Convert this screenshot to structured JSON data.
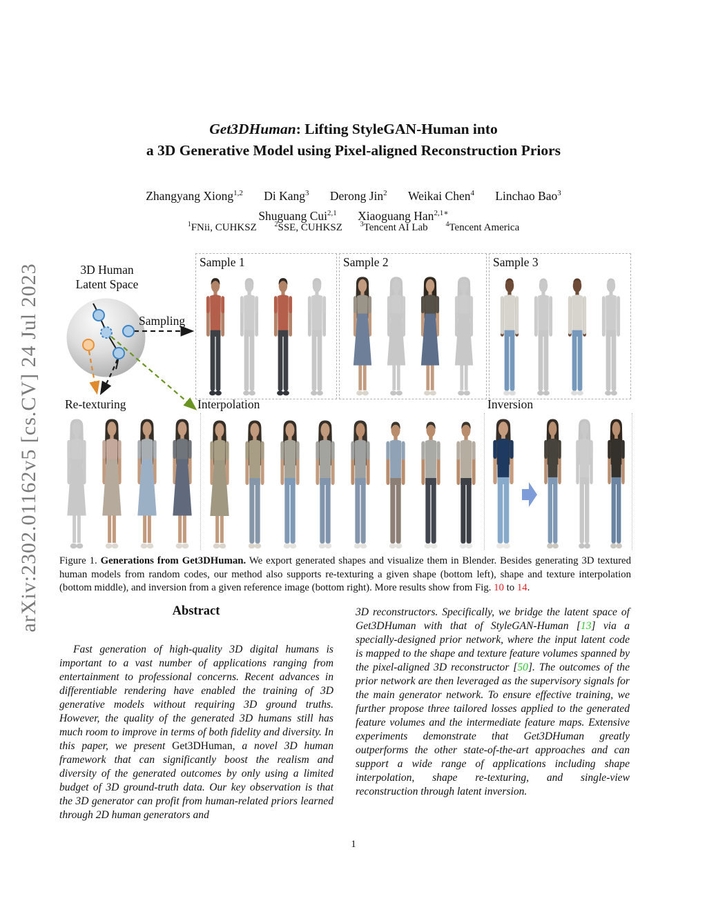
{
  "arxiv_label": "arXiv:2302.01162v5  [cs.CV]  24 Jul 2023",
  "title": {
    "line1_italic": "Get3DHuman",
    "line1_rest": ": Lifting StyleGAN-Human into",
    "line2": "a 3D Generative Model using Pixel-aligned Reconstruction Priors"
  },
  "authors": {
    "row1": [
      {
        "name": "Zhangyang Xiong",
        "sup": "1,2"
      },
      {
        "name": "Di Kang",
        "sup": "3"
      },
      {
        "name": "Derong Jin",
        "sup": "2"
      },
      {
        "name": "Weikai Chen",
        "sup": "4"
      },
      {
        "name": "Linchao Bao",
        "sup": "3"
      }
    ],
    "row2": [
      {
        "name": "Shuguang Cui",
        "sup": "2,1"
      },
      {
        "name": "Xiaoguang Han",
        "sup": "2,1∗"
      }
    ],
    "affiliations": [
      {
        "sup": "1",
        "label": "FNii, CUHKSZ"
      },
      {
        "sup": "2",
        "label": "SSE, CUHKSZ"
      },
      {
        "sup": "3",
        "label": "Tencent AI Lab"
      },
      {
        "sup": "4",
        "label": "Tencent America"
      }
    ]
  },
  "figure1": {
    "latent_label_line1": "3D Human",
    "latent_label_line2": "Latent Space",
    "sampling_label": "Sampling",
    "retexturing_label": "Re-texturing",
    "interpolation_label": "Interpolation",
    "inversion_label": "Inversion",
    "diagram": {
      "dot_fill": "#aecde9",
      "dot_stroke": "#3d85c6",
      "orange_fill": "#f8cf9e",
      "orange_stroke": "#e69138",
      "line_black": "#1a1a1a",
      "arrow_orange": "#e08a2e",
      "arrow_green": "#6a9422"
    },
    "panels": [
      {
        "label": "Sample 1",
        "figures": [
          {
            "t": "pants",
            "hs": "short",
            "skin": "#b28366",
            "hair": "#2e2822",
            "top": "#b45f4b",
            "bot": "#3d4045",
            "shoes": "#33363a"
          },
          {
            "t": "pants",
            "hs": "short",
            "skin": "#c9c9c9",
            "hair": "#c4c4c4",
            "top": "#cccccc",
            "bot": "#c7c7c7",
            "shoes": "#c3c3c3"
          },
          {
            "t": "pants",
            "hs": "short",
            "skin": "#b28366",
            "hair": "#2e2822",
            "top": "#b45f4b",
            "bot": "#3d4045",
            "shoes": "#33363a"
          },
          {
            "t": "pants",
            "hs": "short",
            "skin": "#c9c9c9",
            "hair": "#c4c4c4",
            "top": "#cccccc",
            "bot": "#c7c7c7",
            "shoes": "#c3c3c3"
          }
        ]
      },
      {
        "label": "Sample 2",
        "figures": [
          {
            "t": "dress",
            "hs": "long",
            "skin": "#c29a7d",
            "hair": "#362f27",
            "top": "#9b9488",
            "bot": "#6e7f9a",
            "shoes": "#d9d5cd"
          },
          {
            "t": "dress",
            "hs": "long",
            "skin": "#cacaca",
            "hair": "#c5c5c5",
            "top": "#cccccc",
            "bot": "#c8c8c8",
            "shoes": "#c4c4c4"
          },
          {
            "t": "dress",
            "hs": "long",
            "skin": "#c29a7d",
            "hair": "#30291f",
            "top": "#565148",
            "bot": "#5e6f8b",
            "shoes": "#d9d5cd"
          },
          {
            "t": "dress",
            "hs": "long",
            "skin": "#cacaca",
            "hair": "#c5c5c5",
            "top": "#cccccc",
            "bot": "#c8c8c8",
            "shoes": "#c4c4c4"
          }
        ]
      },
      {
        "label": "Sample 3",
        "figures": [
          {
            "t": "pants",
            "hs": "bald",
            "skin": "#6d4b37",
            "hair": "#5a3c2b",
            "top": "#d7d4ce",
            "bot": "#7598bb",
            "shoes": "#dddddd",
            "sl": "long"
          },
          {
            "t": "pants",
            "hs": "bald",
            "skin": "#c9c9c9",
            "hair": "#c4c4c4",
            "top": "#cccccc",
            "bot": "#c7c7c7",
            "shoes": "#c3c3c3",
            "sl": "long"
          },
          {
            "t": "pants",
            "hs": "bald",
            "skin": "#6d4b37",
            "hair": "#5a3c2b",
            "top": "#d7d4ce",
            "bot": "#7598bb",
            "shoes": "#dddddd",
            "sl": "long"
          },
          {
            "t": "pants",
            "hs": "bald",
            "skin": "#c9c9c9",
            "hair": "#c4c4c4",
            "top": "#cccccc",
            "bot": "#c7c7c7",
            "shoes": "#c3c3c3",
            "sl": "long"
          }
        ]
      }
    ],
    "retexturing_figures": [
      {
        "t": "dress",
        "hs": "long",
        "skin": "#cacaca",
        "hair": "#c5c5c5",
        "top": "#cccccc",
        "bot": "#c8c8c8",
        "shoes": "#c4c4c4"
      },
      {
        "t": "dress",
        "hs": "long",
        "skin": "#c29a7d",
        "hair": "#362f27",
        "top": "#c3a89b",
        "bot": "#b6aa9c",
        "shoes": "#ddd9d2"
      },
      {
        "t": "dress",
        "hs": "long",
        "skin": "#c29a7d",
        "hair": "#362f27",
        "top": "#a8aeb2",
        "bot": "#9cb0c5",
        "shoes": "#ddd9d2"
      },
      {
        "t": "dress",
        "hs": "long",
        "skin": "#c29a7d",
        "hair": "#362f27",
        "top": "#70757c",
        "bot": "#606a7c",
        "shoes": "#ddd9d2"
      }
    ],
    "interpolation_figures": [
      {
        "t": "dress",
        "hs": "long",
        "skin": "#c29a7d",
        "hair": "#362f27",
        "top": "#a89e86",
        "bot": "#a19881",
        "shoes": "#d9d5cd"
      },
      {
        "t": "pants",
        "hs": "long",
        "skin": "#c29a7d",
        "hair": "#362f27",
        "top": "#a89e86",
        "bot": "#8696a9",
        "shoes": "#d9d5cd"
      },
      {
        "t": "pants",
        "hs": "long",
        "skin": "#c29a7d",
        "hair": "#362f27",
        "top": "#a5a298",
        "bot": "#7f9ab7",
        "shoes": "#e4e2de"
      },
      {
        "t": "pants",
        "hs": "long",
        "skin": "#c29a7d",
        "hair": "#362f27",
        "top": "#a3a39f",
        "bot": "#8095ac",
        "shoes": "#e4e2de"
      },
      {
        "t": "pants",
        "hs": "long",
        "skin": "#bb8e6e",
        "hair": "#38342c",
        "top": "#9fa1a1",
        "bot": "#8496ab",
        "shoes": "#e4e2de"
      },
      {
        "t": "pants",
        "hs": "short",
        "skin": "#b98c6c",
        "hair": "#3a362e",
        "top": "#90a3b6",
        "bot": "#8b7f76",
        "shoes": "#e4e2de"
      },
      {
        "t": "pants",
        "hs": "short",
        "skin": "#b98c6c",
        "hair": "#3a362e",
        "top": "#a9a9a5",
        "bot": "#42464f",
        "shoes": "#e8e8e6"
      },
      {
        "t": "pants",
        "hs": "short",
        "skin": "#b98c6c",
        "hair": "#3a362e",
        "top": "#b6ada1",
        "bot": "#3c4046",
        "shoes": "#e8e8e6"
      }
    ],
    "inversion": {
      "arrow_color": "#7e9cd8",
      "reference": {
        "t": "pants",
        "hs": "long",
        "skin": "#c69c7e",
        "hair": "#372f28",
        "top": "#1f3a60",
        "bot": "#87a9ca",
        "shoes": "#eceae6"
      },
      "figures": [
        {
          "t": "pants",
          "hs": "long",
          "skin": "#b88e70",
          "hair": "#332c25",
          "top": "#46433d",
          "bot": "#7f98b4",
          "shoes": "#cac6c0"
        },
        {
          "t": "pants",
          "hs": "long",
          "skin": "#c9c9c9",
          "hair": "#c4c4c4",
          "top": "#cccccc",
          "bot": "#c7c7c7",
          "shoes": "#c3c3c3"
        },
        {
          "t": "pants",
          "hs": "long",
          "skin": "#b88e70",
          "hair": "#30271f",
          "top": "#34312c",
          "bot": "#6b84a1",
          "shoes": "#cac6c0"
        }
      ]
    }
  },
  "caption": {
    "prefix": "Figure 1. ",
    "bold": "Generations from Get3DHuman.",
    "body": " We export generated shapes and visualize them in Blender. Besides generating 3D textured human models from random codes, our method also supports re-texturing a given shape (bottom left), shape and texture interpolation (bottom middle), and inversion from a given reference image (bottom right). More results show from Fig. ",
    "ref1": "10",
    "between": " to ",
    "ref2": "14",
    "end": "."
  },
  "abstract": {
    "heading": "Abstract",
    "seg1": "Fast generation of high-quality 3D digital humans is important to a vast number of applications ranging from entertainment to professional concerns. Recent advances in differentiable rendering have enabled the training of 3D generative models without requiring 3D ground truths. However, the quality of the generated 3D humans still has much room to improve in terms of both fidelity and diversity. In this paper, we present ",
    "roman": "Get3DHuman",
    "seg2": ", a novel 3D human framework that can significantly boost the realism and diversity of the generated outcomes by only using a limited budget of 3D ground-truth data. Our key observation is that the 3D generator can profit from human-related priors learned through 2D human generators and"
  },
  "column2": {
    "seg1": "3D reconstructors. Specifically, we bridge the latent space of Get3DHuman with that of StyleGAN-Human [",
    "ref1": "13",
    "seg2": "] via a specially-designed prior network, where the input latent code is mapped to the shape and texture feature volumes spanned by the pixel-aligned 3D reconstructor [",
    "ref2": "50",
    "seg3": "]. The outcomes of the prior network are then leveraged as the supervisory signals for the main generator network. To ensure effective training, we further propose three tailored losses applied to the generated feature volumes and the intermediate feature maps. Extensive experiments demonstrate that Get3DHuman greatly outperforms the other state-of-the-art approaches and can support a wide range of applications including shape interpolation, shape re-texturing, and single-view reconstruction through latent inversion."
  },
  "page_number": "1",
  "colors": {
    "ref_red": "#e01e1e",
    "ref_green": "#30c530",
    "sidebar_gray": "#7a7a7a"
  }
}
